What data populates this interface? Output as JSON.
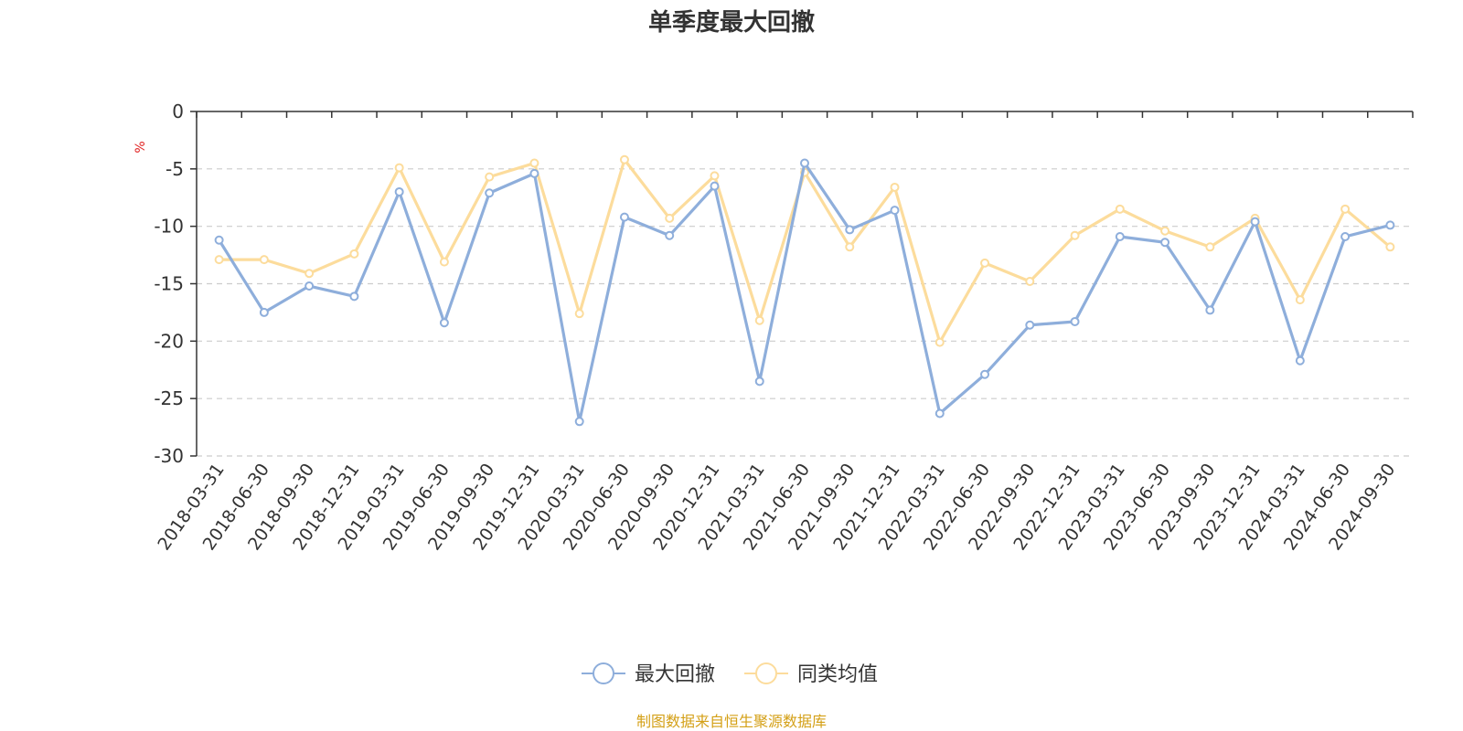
{
  "chart_data": {
    "type": "line",
    "title": "单季度最大回撤",
    "ylabel": "%",
    "ylim": [
      -30,
      0
    ],
    "yticks": [
      0,
      -5,
      -10,
      -15,
      -20,
      -25,
      -30
    ],
    "grid": true,
    "legend_position": "bottom",
    "categories": [
      "2018-03-31",
      "2018-06-30",
      "2018-09-30",
      "2018-12-31",
      "2019-03-31",
      "2019-06-30",
      "2019-09-30",
      "2019-12-31",
      "2020-03-31",
      "2020-06-30",
      "2020-09-30",
      "2020-12-31",
      "2021-03-31",
      "2021-06-30",
      "2021-09-30",
      "2021-12-31",
      "2022-03-31",
      "2022-06-30",
      "2022-09-30",
      "2022-12-31",
      "2023-03-31",
      "2023-06-30",
      "2023-09-30",
      "2023-12-31",
      "2024-03-31",
      "2024-06-30",
      "2024-09-30"
    ],
    "series": [
      {
        "name": "最大回撤",
        "color": "#8eaedb",
        "values": [
          -11.2,
          -17.5,
          -15.2,
          -16.1,
          -7.0,
          -18.4,
          -7.1,
          -5.4,
          -27.0,
          -9.2,
          -10.8,
          -6.5,
          -23.5,
          -4.5,
          -10.3,
          -8.6,
          -26.3,
          -22.9,
          -18.6,
          -18.3,
          -10.9,
          -11.4,
          -17.3,
          -9.6,
          -21.7,
          -10.9,
          -9.9
        ]
      },
      {
        "name": "同类均值",
        "color": "#fcdc9c",
        "values": [
          -12.9,
          -12.9,
          -14.1,
          -12.4,
          -4.9,
          -13.1,
          -5.7,
          -4.5,
          -17.6,
          -4.2,
          -9.3,
          -5.6,
          -18.2,
          -5.3,
          -11.8,
          -6.6,
          -20.1,
          -13.2,
          -14.8,
          -10.8,
          -8.5,
          -10.4,
          -11.8,
          -9.3,
          -16.4,
          -8.5,
          -11.8
        ]
      }
    ],
    "source_note": "制图数据来自恒生聚源数据库",
    "source_color": "#d4a017",
    "unit_color": "#e02020",
    "axis_color": "#333333",
    "grid_color": "#cccccc"
  }
}
